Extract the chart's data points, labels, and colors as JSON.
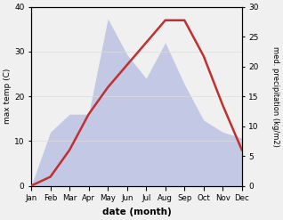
{
  "months": [
    "Jan",
    "Feb",
    "Mar",
    "Apr",
    "May",
    "Jun",
    "Jul",
    "Aug",
    "Sep",
    "Oct",
    "Nov",
    "Dec"
  ],
  "temperature": [
    0,
    2,
    8,
    16,
    22,
    27,
    32,
    37,
    37,
    29,
    18,
    8
  ],
  "precipitation": [
    0,
    9,
    12,
    12,
    28,
    22,
    18,
    24,
    17,
    11,
    9,
    8
  ],
  "temp_color": "#c03030",
  "precip_color": "#b0b8e0",
  "temp_ylim": [
    0,
    40
  ],
  "precip_ylim": [
    0,
    30
  ],
  "xlabel": "date (month)",
  "ylabel_left": "max temp (C)",
  "ylabel_right": "med. precipitation (kg/m2)",
  "background_color": "#f0f0f0",
  "plot_bg_color": "#ffffff",
  "temp_yticks": [
    0,
    10,
    20,
    30,
    40
  ],
  "precip_yticks": [
    0,
    5,
    10,
    15,
    20,
    25,
    30
  ]
}
